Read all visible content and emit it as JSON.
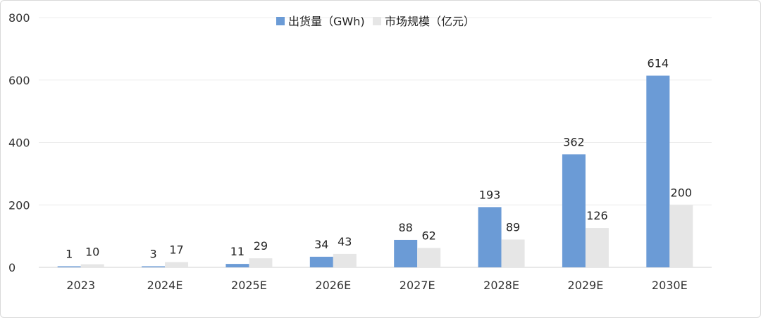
{
  "chart_data": {
    "type": "bar",
    "categories": [
      "2023",
      "2024E",
      "2025E",
      "2026E",
      "2027E",
      "2028E",
      "2029E",
      "2030E"
    ],
    "series": [
      {
        "name": "出货量（GWh)",
        "values": [
          1,
          3,
          11,
          34,
          88,
          193,
          362,
          614
        ],
        "color": "#6b9bd6"
      },
      {
        "name": "市场规模（亿元）",
        "values": [
          10,
          17,
          29,
          43,
          62,
          89,
          126,
          200
        ],
        "color": "#e6e6e6"
      }
    ],
    "y_ticks": [
      0,
      200,
      400,
      600,
      800
    ],
    "ylim": [
      0,
      800
    ],
    "legend_position": "top-center",
    "grid": true,
    "title": "",
    "xlabel": "",
    "ylabel": ""
  }
}
